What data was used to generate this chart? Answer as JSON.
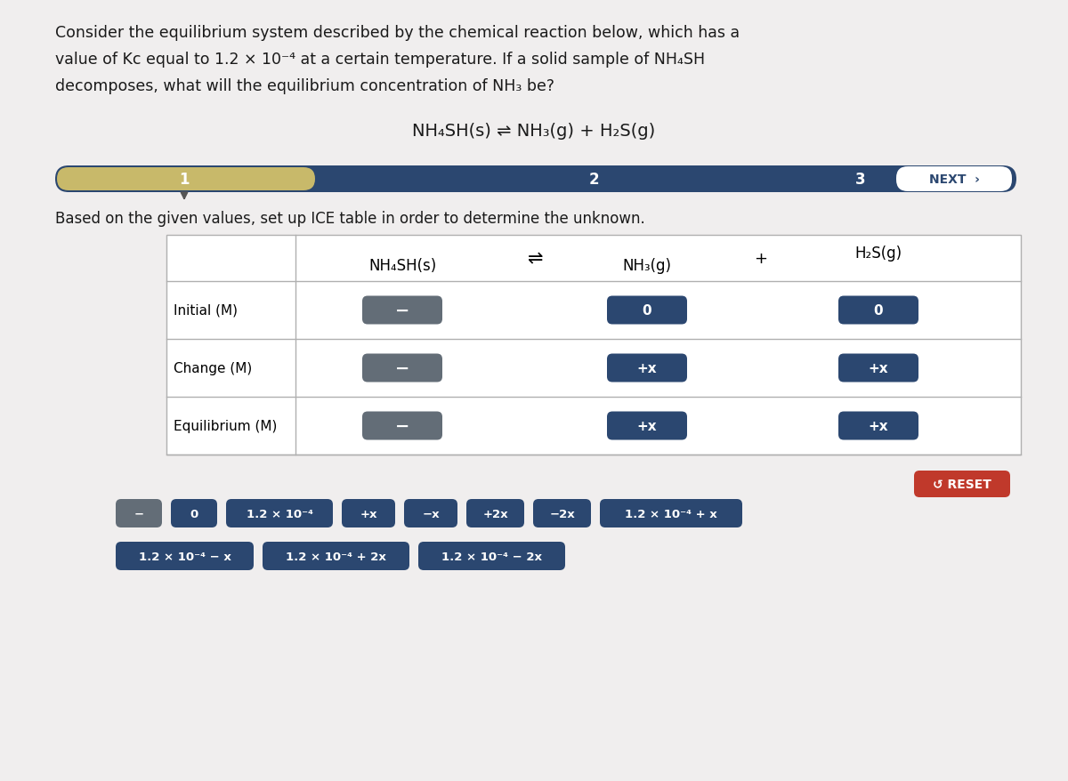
{
  "bg_color": "#d0cece",
  "white_bg": "#f0eeee",
  "title_lines": [
    "Consider the equilibrium system described by the chemical reaction below, which has a",
    "value of Kc equal to 1.2 × 10⁻⁴ at a certain temperature. If a solid sample of NH₄SH",
    "decomposes, what will the equilibrium concentration of NH₃ be?"
  ],
  "equation": "NH₄SH(s) ⇌ NH₃(g) + H₂S(g)",
  "nav_bar_color": "#2b4770",
  "nav_highlight_color": "#c8b96a",
  "next_text": "NEXT  ›",
  "instruction_text": "Based on the given values, set up ICE table in order to determine the unknown.",
  "dark_btn_color": "#636d77",
  "blue_btn_color": "#2b4770",
  "red_btn_color": "#c0392b",
  "white_text": "#ffffff",
  "black_text": "#1a1a1a",
  "table_border_color": "#b0b0b0",
  "reset_text": "↺ RESET",
  "nh4sh_btn_text": "−",
  "nh3_initial": "0",
  "nh3_change": "+x",
  "nh3_equil": "+x",
  "h2s_initial": "0",
  "h2s_change": "+x",
  "h2s_equil": "+x",
  "tiles_row1": [
    "−",
    "0",
    "1.2 × 10⁻⁴",
    "+x",
    "−x",
    "+2x",
    "−2x",
    "1.2 × 10⁻⁴ + x"
  ],
  "tiles_row1_colors": [
    "#636d77",
    "#2b4770",
    "#2b4770",
    "#2b4770",
    "#2b4770",
    "#2b4770",
    "#2b4770",
    "#2b4770"
  ],
  "tiles_row2": [
    "1.2 × 10⁻⁴ − x",
    "1.2 × 10⁻⁴ + 2x",
    "1.2 × 10⁻⁴ − 2x"
  ],
  "tiles_row2_colors": [
    "#2b4770",
    "#2b4770",
    "#2b4770"
  ]
}
